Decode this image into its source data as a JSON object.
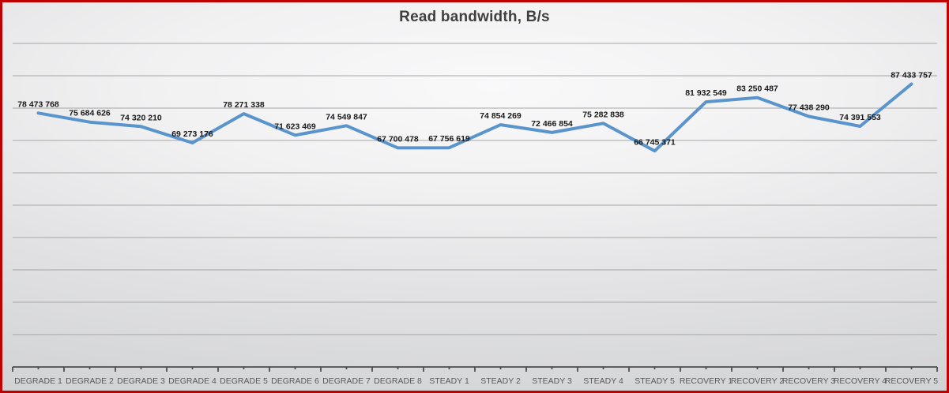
{
  "window": {
    "frame_border_color": "#C00000"
  },
  "chart_data": {
    "type": "line",
    "title": "Read bandwidth, B/s",
    "categories": [
      "DEGRADE 1",
      "DEGRADE 2",
      "DEGRADE 3",
      "DEGRADE 4",
      "DEGRADE 5",
      "DEGRADE 6",
      "DEGRADE 7",
      "DEGRADE 8",
      "STEADY 1",
      "STEADY 2",
      "STEADY 3",
      "STEADY 4",
      "STEADY 5",
      "RECOVERY 1",
      "RECOVERY 2",
      "RECOVERY 3",
      "RECOVERY 4",
      "RECOVERY 5"
    ],
    "series": [
      {
        "values": [
          78473768,
          75684626,
          74320210,
          69273176,
          78271338,
          71623469,
          74549847,
          67700478,
          67756619,
          74854269,
          72466854,
          75282838,
          66745371,
          81932549,
          83250487,
          77438290,
          74391553,
          87433757
        ],
        "value_labels": [
          "78 473 768",
          "75 684 626",
          "74 320 210",
          "69 273 176",
          "78 271 338",
          "71 623 469",
          "74 549 847",
          "67 700 478",
          "67 756 619",
          "74 854 269",
          "72 466 854",
          "75 282 838",
          "66 745 371",
          "81 932 549",
          "83 250 487",
          "77 438 290",
          "74 391 553",
          "87 433 757"
        ]
      }
    ],
    "xlabel": "",
    "ylabel": "",
    "ylim": [
      0,
      100000000
    ],
    "y_major_unit": 10000000,
    "y_tick_labels_visible": false,
    "grid": true,
    "legend_position": "none",
    "data_labels_position": "above",
    "colors": {
      "line": "#5A94CD",
      "data_label": "#1A1A1A",
      "axis_line": "#4D4D4D",
      "axis_label": "#595959",
      "gridline": "#A6A6A6",
      "title": "#3F3F3F"
    }
  }
}
